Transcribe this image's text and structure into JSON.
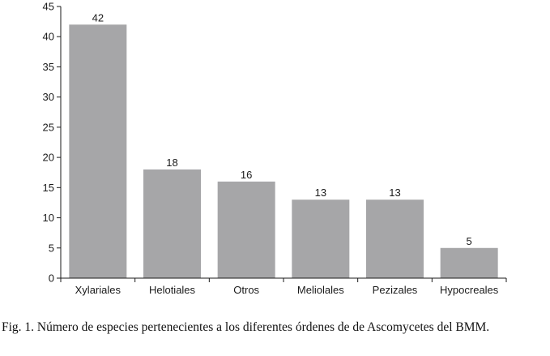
{
  "chart_data": {
    "type": "bar",
    "categories": [
      "Xylariales",
      "Helotiales",
      "Otros",
      "Meliolales",
      "Pezizales",
      "Hypocreales"
    ],
    "values": [
      42,
      18,
      16,
      13,
      13,
      5
    ],
    "data_labels": [
      "42",
      "18",
      "16",
      "13",
      "13",
      "5"
    ],
    "yticks": [
      0,
      5,
      10,
      15,
      20,
      25,
      30,
      35,
      40,
      45
    ],
    "ylim": [
      0,
      45
    ],
    "title": "",
    "xlabel": "",
    "ylabel": "",
    "grid": false,
    "bar_color": "#a6a6a8",
    "axis_color": "#1a1a1a"
  },
  "caption": "Fig. 1. Número de especies pertenecientes a los diferentes órdenes de de Ascomycetes del BMM."
}
